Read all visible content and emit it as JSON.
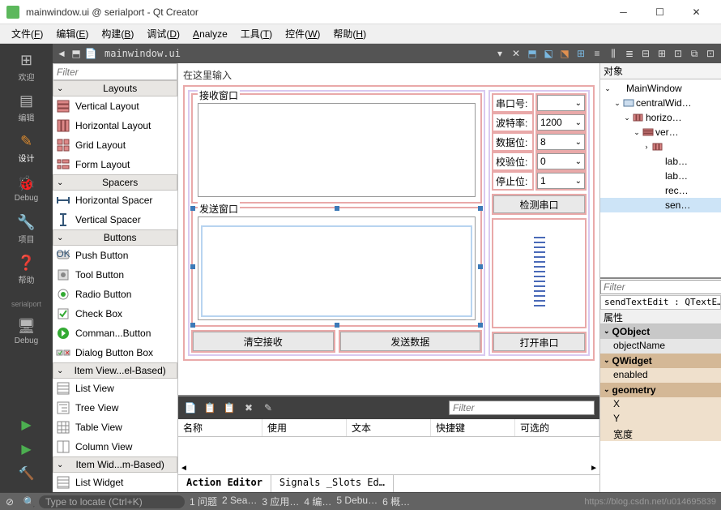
{
  "titlebar": {
    "title": "mainwindow.ui @ serialport - Qt Creator"
  },
  "menubar": [
    {
      "label": "文件",
      "u": "F"
    },
    {
      "label": "编辑",
      "u": "E"
    },
    {
      "label": "构建",
      "u": "B"
    },
    {
      "label": "调试",
      "u": "D"
    },
    {
      "label": "Analyze",
      "u": ""
    },
    {
      "label": "工具",
      "u": "T"
    },
    {
      "label": "控件",
      "u": "W"
    },
    {
      "label": "帮助",
      "u": "H"
    }
  ],
  "modebar": [
    {
      "icon": "grid",
      "label": "欢迎"
    },
    {
      "icon": "edit",
      "label": "编辑"
    },
    {
      "icon": "pencil",
      "label": "设计",
      "active": true
    },
    {
      "icon": "bug",
      "label": "Debug"
    },
    {
      "icon": "wrench",
      "label": "项目"
    },
    {
      "icon": "help",
      "label": "帮助"
    }
  ],
  "modeproject": "serialport",
  "docbar": {
    "filename": "mainwindow.ui"
  },
  "widgetbox": {
    "filter_placeholder": "Filter",
    "groups": [
      {
        "title": "Layouts",
        "items": [
          {
            "icon": "vlay",
            "label": "Vertical Layout"
          },
          {
            "icon": "hlay",
            "label": "Horizontal Layout"
          },
          {
            "icon": "glay",
            "label": "Grid Layout"
          },
          {
            "icon": "flay",
            "label": "Form Layout"
          }
        ]
      },
      {
        "title": "Spacers",
        "items": [
          {
            "icon": "hsp",
            "label": "Horizontal Spacer"
          },
          {
            "icon": "vsp",
            "label": "Vertical Spacer"
          }
        ]
      },
      {
        "title": "Buttons",
        "items": [
          {
            "icon": "pbtn",
            "label": "Push Button"
          },
          {
            "icon": "tbtn",
            "label": "Tool Button"
          },
          {
            "icon": "radio",
            "label": "Radio Button"
          },
          {
            "icon": "check",
            "label": "Check Box"
          },
          {
            "icon": "clink",
            "label": "Comman...Button"
          },
          {
            "icon": "dbox",
            "label": "Dialog Button Box"
          }
        ]
      },
      {
        "title": "Item View...el-Based)",
        "items": [
          {
            "icon": "list",
            "label": "List View"
          },
          {
            "icon": "tree",
            "label": "Tree View"
          },
          {
            "icon": "table",
            "label": "Table View"
          },
          {
            "icon": "col",
            "label": "Column View"
          }
        ]
      },
      {
        "title": "Item Wid...m-Based)",
        "items": [
          {
            "icon": "list",
            "label": "List Widget"
          }
        ]
      }
    ]
  },
  "form": {
    "title": "在这里输入",
    "recv_label": "接收窗口",
    "send_label": "发送窗口",
    "clear_btn": "清空接收",
    "send_btn": "发送数据",
    "cfg": [
      {
        "label": "串口号:",
        "value": ""
      },
      {
        "label": "波特率:",
        "value": "1200"
      },
      {
        "label": "数据位:",
        "value": "8"
      },
      {
        "label": "校验位:",
        "value": "0"
      },
      {
        "label": "停止位:",
        "value": "1"
      }
    ],
    "detect_btn": "检测串口",
    "open_btn": "打开串口"
  },
  "actioneditor": {
    "filter_placeholder": "Filter",
    "columns": [
      "名称",
      "使用",
      "文本",
      "快捷键",
      "可选的"
    ],
    "tabs": [
      "Action Editor",
      "Signals _Slots Ed…"
    ]
  },
  "objtree": {
    "header": "对象",
    "nodes": [
      {
        "pad": 1,
        "tw": "⌄",
        "icon": "win",
        "label": "MainWindow"
      },
      {
        "pad": 2,
        "tw": "⌄",
        "icon": "wid",
        "label": "centralWid…"
      },
      {
        "pad": 3,
        "tw": "⌄",
        "icon": "hlay",
        "label": "horizo…"
      },
      {
        "pad": 4,
        "tw": "⌄",
        "icon": "vlay",
        "label": "ver…"
      },
      {
        "pad": 5,
        "tw": "›",
        "icon": "hlay",
        "label": ""
      },
      {
        "pad": 5,
        "tw": "",
        "icon": "",
        "label": "lab…"
      },
      {
        "pad": 5,
        "tw": "",
        "icon": "",
        "label": "lab…"
      },
      {
        "pad": 5,
        "tw": "",
        "icon": "",
        "label": "rec…"
      },
      {
        "pad": 5,
        "tw": "",
        "icon": "",
        "label": "sen…",
        "sel": true
      }
    ]
  },
  "propeditor": {
    "filter_placeholder": "Filter",
    "object_info": "sendTextEdit : QTextE…",
    "header": "属性",
    "groups": [
      {
        "name": "QObject",
        "cls": "qobj",
        "props": [
          "objectName"
        ]
      },
      {
        "name": "QWidget",
        "cls": "qwid",
        "props": [
          "enabled"
        ]
      },
      {
        "name": "geometry",
        "cls": "geom",
        "props": [
          "X",
          "Y",
          "宽度"
        ]
      }
    ]
  },
  "statusbar": {
    "locate_placeholder": "Type to locate (Ctrl+K)",
    "items": [
      "1 问题",
      "2 Sea…",
      "3 应用…",
      "4 编…",
      "5 Debu…",
      "6 概…"
    ],
    "watermark": "https://blog.csdn.net/u014695839"
  }
}
